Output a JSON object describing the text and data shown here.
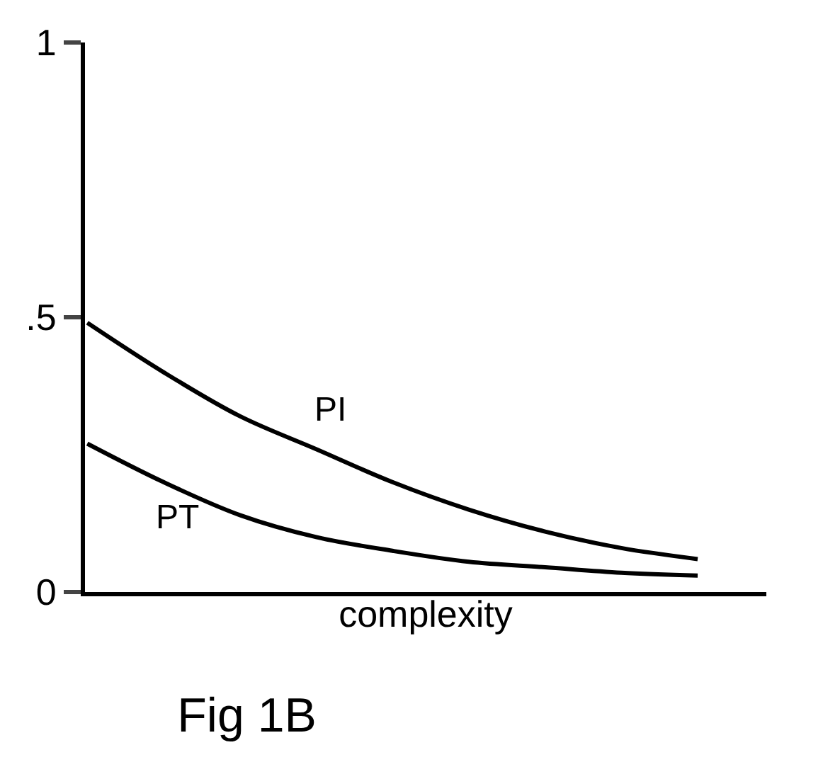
{
  "chart_data": {
    "type": "line",
    "title": "Fig 1B",
    "xlabel": "complexity",
    "categories": [
      null,
      null,
      null,
      null,
      null,
      null,
      null,
      null,
      null
    ],
    "series": [
      {
        "name": "PI",
        "color": "#000000",
        "values": [
          0.49,
          0.4,
          0.32,
          0.26,
          0.2,
          0.15,
          0.11,
          0.08,
          0.06
        ]
      },
      {
        "name": "PT",
        "color": "#000000",
        "values": [
          0.27,
          0.2,
          0.14,
          0.1,
          0.075,
          0.055,
          0.045,
          0.035,
          0.03
        ]
      }
    ],
    "ylim": [
      0,
      1
    ],
    "yticks": [
      0,
      {
        "value": 0.5,
        "label": ".5"
      },
      1
    ],
    "legend": false,
    "marker": "none",
    "line_style": "solid",
    "tick_labels": "y"
  }
}
